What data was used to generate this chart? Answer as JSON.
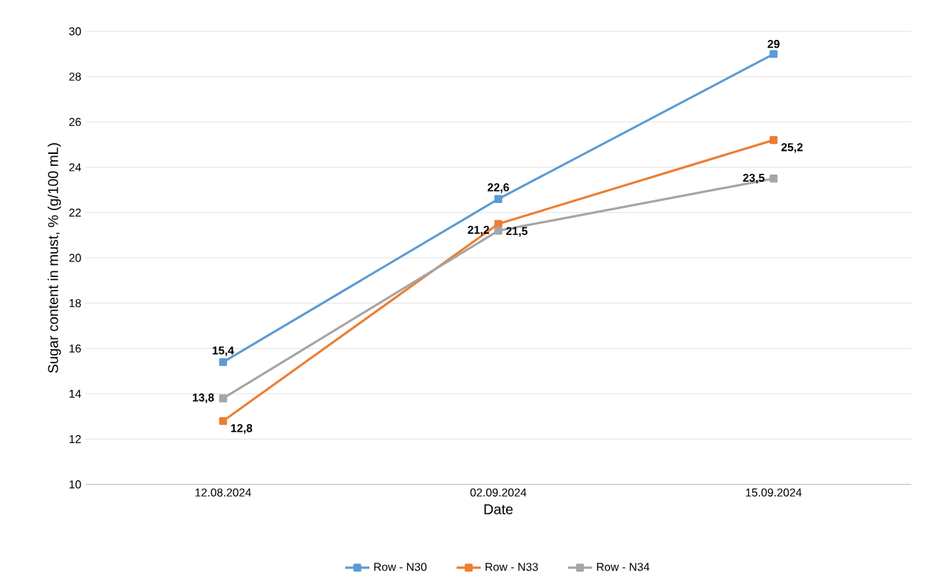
{
  "chart_data": {
    "type": "line",
    "xlabel": "Date",
    "ylabel": "Sugar content in must, % (g/100 mL)",
    "categories": [
      "12.08.2024",
      "02.09.2024",
      "15.09.2024"
    ],
    "series": [
      {
        "name": "Row - N30",
        "color": "#5b9bd5",
        "values": [
          15.4,
          22.6,
          29
        ],
        "value_labels": [
          "15,4",
          "22,6",
          "29"
        ]
      },
      {
        "name": "Row - N33",
        "color": "#ed7d31",
        "values": [
          12.8,
          21.5,
          25.2
        ],
        "value_labels": [
          "12,8",
          "21,5",
          "25,2"
        ]
      },
      {
        "name": "Row - N34",
        "color": "#a5a5a5",
        "values": [
          13.8,
          21.2,
          23.5
        ],
        "value_labels": [
          "13,8",
          "21,2",
          "23,5"
        ]
      }
    ],
    "ylim": [
      10,
      30
    ],
    "yticks": [
      10,
      12,
      14,
      16,
      18,
      20,
      22,
      24,
      26,
      28,
      30
    ],
    "grid": "y",
    "legend": "bottom",
    "marker": "square",
    "line_style": "solid"
  }
}
